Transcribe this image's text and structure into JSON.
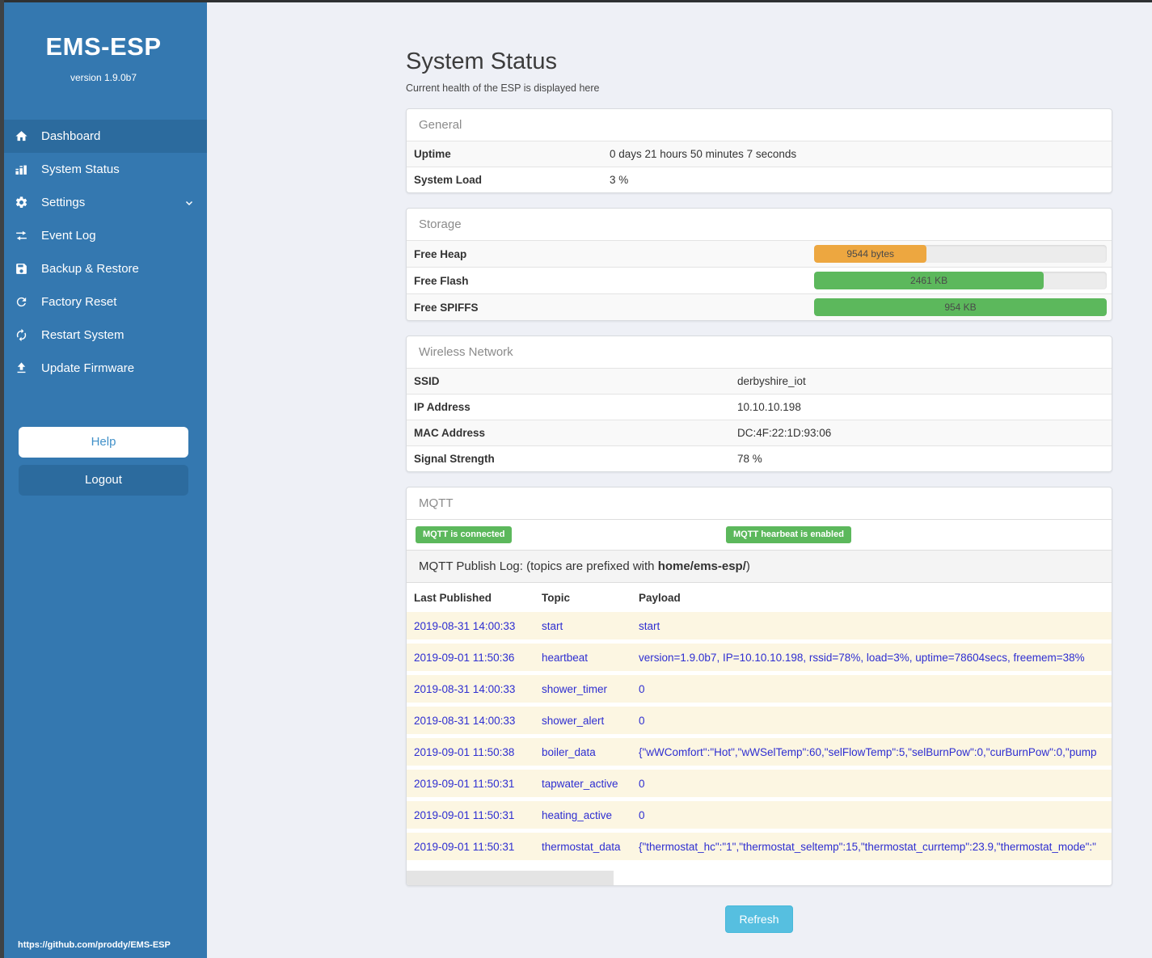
{
  "sidebar": {
    "title": "EMS-ESP",
    "version": "version 1.9.0b7",
    "items": [
      {
        "label": "Dashboard",
        "icon": "home-icon",
        "active": true
      },
      {
        "label": "System Status",
        "icon": "bar-chart-icon",
        "active": false
      },
      {
        "label": "Settings",
        "icon": "gear-icon",
        "active": false,
        "chevron": true
      },
      {
        "label": "Event Log",
        "icon": "swap-arrows-icon",
        "active": false
      },
      {
        "label": "Backup & Restore",
        "icon": "save-icon",
        "active": false
      },
      {
        "label": "Factory Reset",
        "icon": "refresh-icon",
        "active": false
      },
      {
        "label": "Restart System",
        "icon": "sync-icon",
        "active": false
      },
      {
        "label": "Update Firmware",
        "icon": "upload-icon",
        "active": false
      }
    ],
    "help_label": "Help",
    "logout_label": "Logout",
    "footer_link": "https://github.com/proddy/EMS-ESP"
  },
  "header": {
    "title": "System Status",
    "subtitle": "Current health of the ESP is displayed here"
  },
  "panels": {
    "general": {
      "title": "General",
      "rows": [
        {
          "label": "Uptime",
          "value": "0 days 21 hours 50 minutes 7 seconds"
        },
        {
          "label": "System Load",
          "value": "3 %"
        }
      ]
    },
    "storage": {
      "title": "Storage",
      "rows": [
        {
          "label": "Free Heap",
          "bar_label": "9544 bytes",
          "percent": 38.5,
          "color": "#eda740"
        },
        {
          "label": "Free Flash",
          "bar_label": "2461 KB",
          "percent": 78.5,
          "color": "#5cb85c"
        },
        {
          "label": "Free SPIFFS",
          "bar_label": "954 KB",
          "percent": 100,
          "color": "#5cb85c"
        }
      ]
    },
    "wireless": {
      "title": "Wireless Network",
      "rows": [
        {
          "label": "SSID",
          "value": "derbyshire_iot"
        },
        {
          "label": "IP Address",
          "value": "10.10.10.198"
        },
        {
          "label": "MAC Address",
          "value": "DC:4F:22:1D:93:06"
        },
        {
          "label": "Signal Strength",
          "value": "78 %"
        }
      ]
    },
    "mqtt": {
      "title": "MQTT",
      "badges": [
        "MQTT is connected",
        "MQTT hearbeat is enabled"
      ],
      "publish_log_prefix": "MQTT Publish Log: (topics are prefixed with ",
      "publish_log_bold": "home/ems-esp/",
      "publish_log_suffix": ")",
      "columns": [
        "Last Published",
        "Topic",
        "Payload"
      ],
      "rows": [
        {
          "time": "2019-08-31 14:00:33",
          "topic": "start",
          "payload": "start"
        },
        {
          "time": "2019-09-01 11:50:36",
          "topic": "heartbeat",
          "payload": "version=1.9.0b7, IP=10.10.10.198, rssid=78%, load=3%, uptime=78604secs, freemem=38%"
        },
        {
          "time": "2019-08-31 14:00:33",
          "topic": "shower_timer",
          "payload": "0"
        },
        {
          "time": "2019-08-31 14:00:33",
          "topic": "shower_alert",
          "payload": "0"
        },
        {
          "time": "2019-09-01 11:50:38",
          "topic": "boiler_data",
          "payload": "{\"wWComfort\":\"Hot\",\"wWSelTemp\":60,\"selFlowTemp\":5,\"selBurnPow\":0,\"curBurnPow\":0,\"pump"
        },
        {
          "time": "2019-09-01 11:50:31",
          "topic": "tapwater_active",
          "payload": "0"
        },
        {
          "time": "2019-09-01 11:50:31",
          "topic": "heating_active",
          "payload": "0"
        },
        {
          "time": "2019-09-01 11:50:31",
          "topic": "thermostat_data",
          "payload": "{\"thermostat_hc\":\"1\",\"thermostat_seltemp\":15,\"thermostat_currtemp\":23.9,\"thermostat_mode\":\""
        }
      ]
    }
  },
  "refresh_label": "Refresh",
  "colors": {
    "sidebar": "#3478b0",
    "sidebar_active": "#2c6b9e",
    "badge_green": "#5cb85c",
    "bar_orange": "#eda740",
    "bar_green": "#5cb85c",
    "log_row_bg": "#fcf6e2",
    "log_text_blue": "#2e2ed1",
    "refresh_blue": "#56bfe0"
  }
}
